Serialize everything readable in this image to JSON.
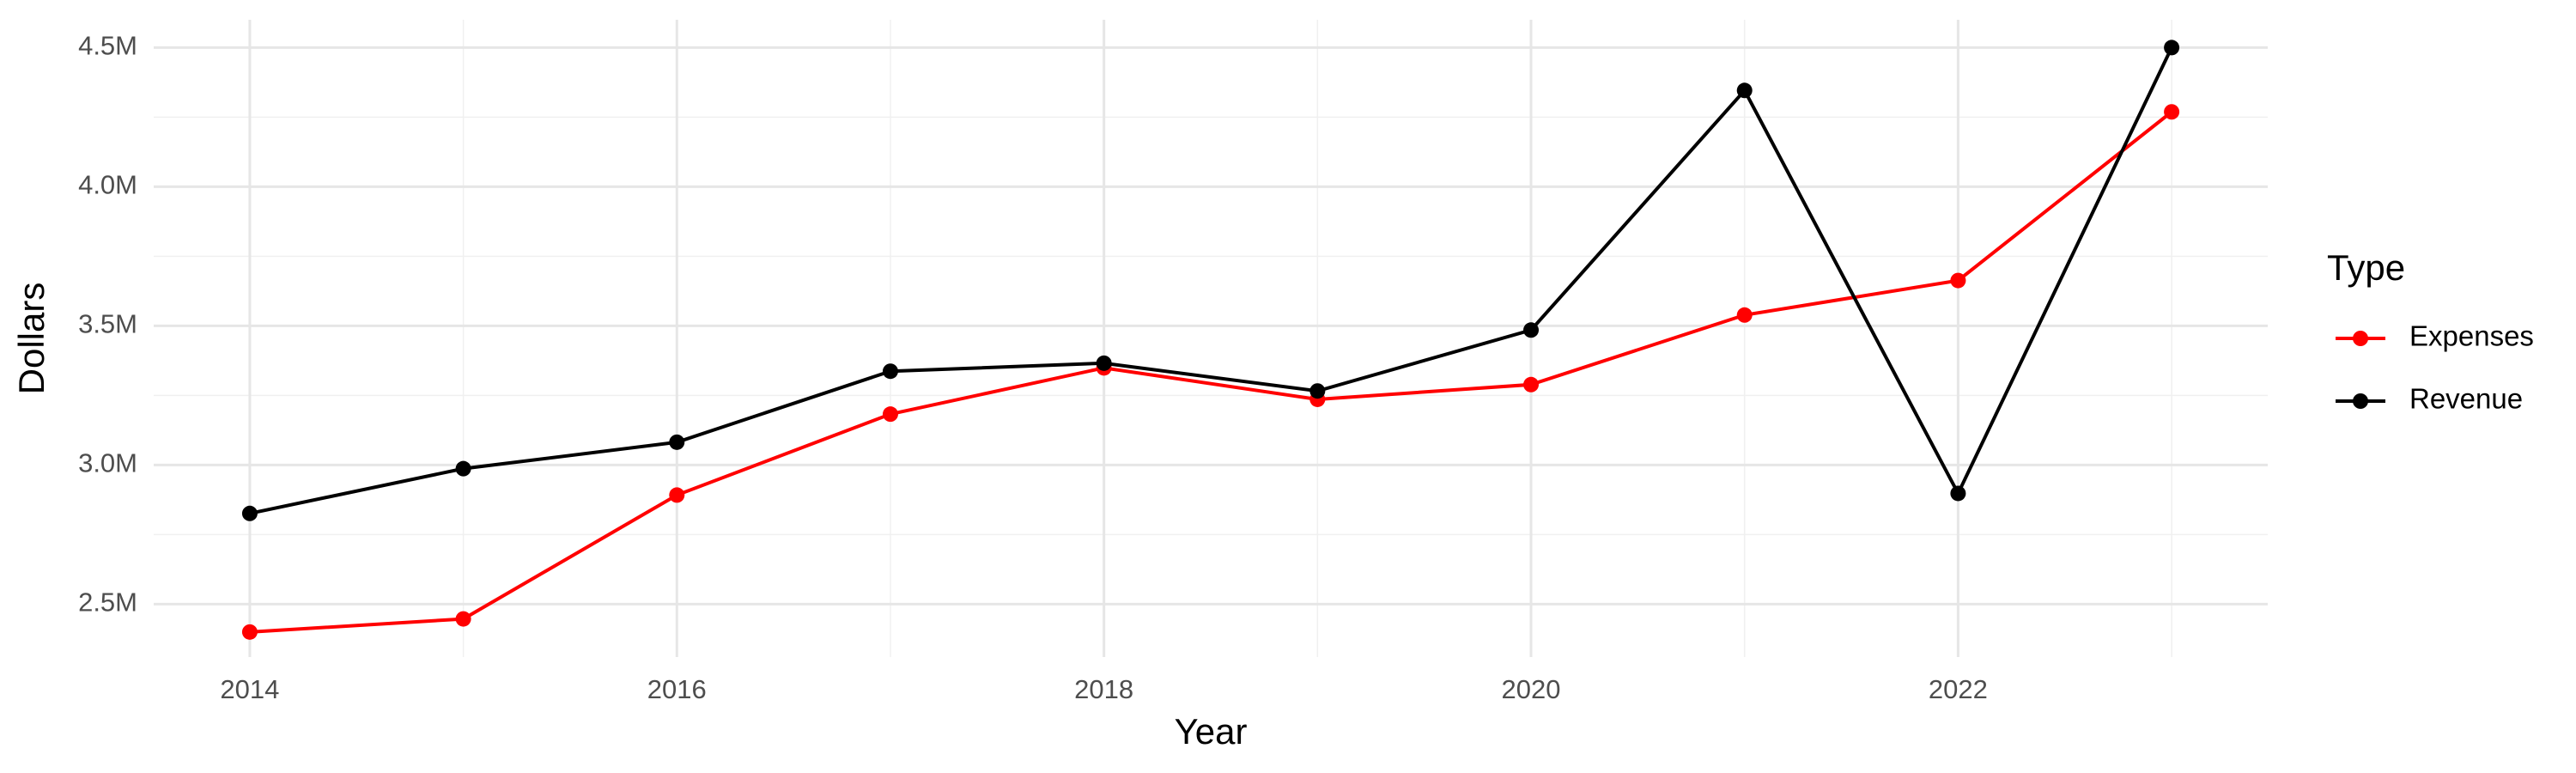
{
  "chart_data": {
    "type": "line",
    "x_label": "Year",
    "y_label": "Dollars",
    "legend_title": "Type",
    "legend": "right",
    "grid": true,
    "x": [
      2014,
      2015,
      2016,
      2017,
      2018,
      2019,
      2020,
      2021,
      2022,
      2023
    ],
    "series": [
      {
        "name": "Expenses",
        "color": "#ff0000",
        "values": [
          2400000,
          2447000,
          2892000,
          3183000,
          3349000,
          3236000,
          3289000,
          3539000,
          3663000,
          4269000
        ]
      },
      {
        "name": "Revenue",
        "color": "#000000",
        "values": [
          2826000,
          2987000,
          3082000,
          3337000,
          3366000,
          3266000,
          3485000,
          4346000,
          2898000,
          4500000
        ]
      }
    ],
    "xlim": [
      2013.55,
      2023.45
    ],
    "xticks": [
      2014,
      2016,
      2018,
      2020,
      2022
    ],
    "ylim": [
      2310000,
      4600000
    ],
    "yticks": [
      {
        "value": 2500000,
        "label": "2.5M"
      },
      {
        "value": 3000000,
        "label": "3.0M"
      },
      {
        "value": 3500000,
        "label": "3.5M"
      },
      {
        "value": 4000000,
        "label": "4.0M"
      },
      {
        "value": 4500000,
        "label": "4.5M"
      }
    ]
  }
}
